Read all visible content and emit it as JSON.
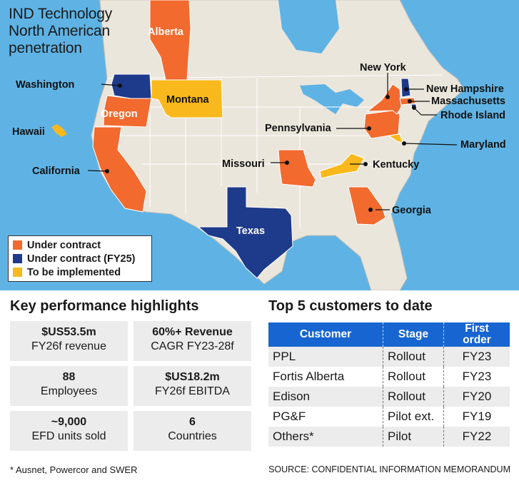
{
  "map": {
    "title_lines": [
      "IND Technology",
      "North American",
      "penetration"
    ],
    "colors": {
      "ocean": "#5fb3e4",
      "land": "#ebe6dc",
      "under_contract": "#f26a2e",
      "under_contract_fy25": "#1e3a8a",
      "to_be_implemented": "#f9b91c"
    },
    "legend": [
      {
        "label": "Under contract",
        "color": "#f26a2e"
      },
      {
        "label": "Under contract (FY25)",
        "color": "#1e3a8a"
      },
      {
        "label": "To be implemented",
        "color": "#f9b91c"
      }
    ],
    "regions": {
      "alberta": "Alberta",
      "washington": "Washington",
      "oregon": "Oregon",
      "montana": "Montana",
      "hawaii": "Hawaii",
      "california": "California",
      "texas": "Texas",
      "missouri": "Missouri",
      "kentucky": "Kentucky",
      "georgia": "Georgia",
      "pennsylvania": "Pennsylvania",
      "new_york": "New York",
      "new_hampshire": "New Hampshire",
      "massachusetts": "Massachusetts",
      "rhode_island": "Rhode Island",
      "maryland": "Maryland"
    }
  },
  "kpi": {
    "title": "Key performance highlights",
    "cells": [
      {
        "value": "$US53.5m",
        "label": "FY26f revenue"
      },
      {
        "value": "60%+ Revenue",
        "label": "CAGR FY23-28f"
      },
      {
        "value": "88",
        "label": "Employees"
      },
      {
        "value": "$US18.2m",
        "label": "FY26f EBITDA"
      },
      {
        "value": "~9,000",
        "label": "EFD units sold"
      },
      {
        "value": "6",
        "label": "Countries"
      }
    ]
  },
  "customers": {
    "title": "Top 5 customers to date",
    "headers": {
      "customer": "Customer",
      "stage": "Stage",
      "first_order_1": "First",
      "first_order_2": "order"
    },
    "rows": [
      {
        "customer": "PPL",
        "stage": "Rollout",
        "first_order": "FY23"
      },
      {
        "customer": "Fortis Alberta",
        "stage": "Rollout",
        "first_order": "FY23"
      },
      {
        "customer": "Edison",
        "stage": "Rollout",
        "first_order": "FY20"
      },
      {
        "customer": "PG&F",
        "stage": "Pilot ext.",
        "first_order": "FY19"
      },
      {
        "customer": "Others*",
        "stage": "Pilot",
        "first_order": "FY22"
      }
    ]
  },
  "footnote": "* Ausnet, Powercor and SWER",
  "source": "SOURCE: CONFIDENTIAL INFORMATION MEMORANDUM"
}
